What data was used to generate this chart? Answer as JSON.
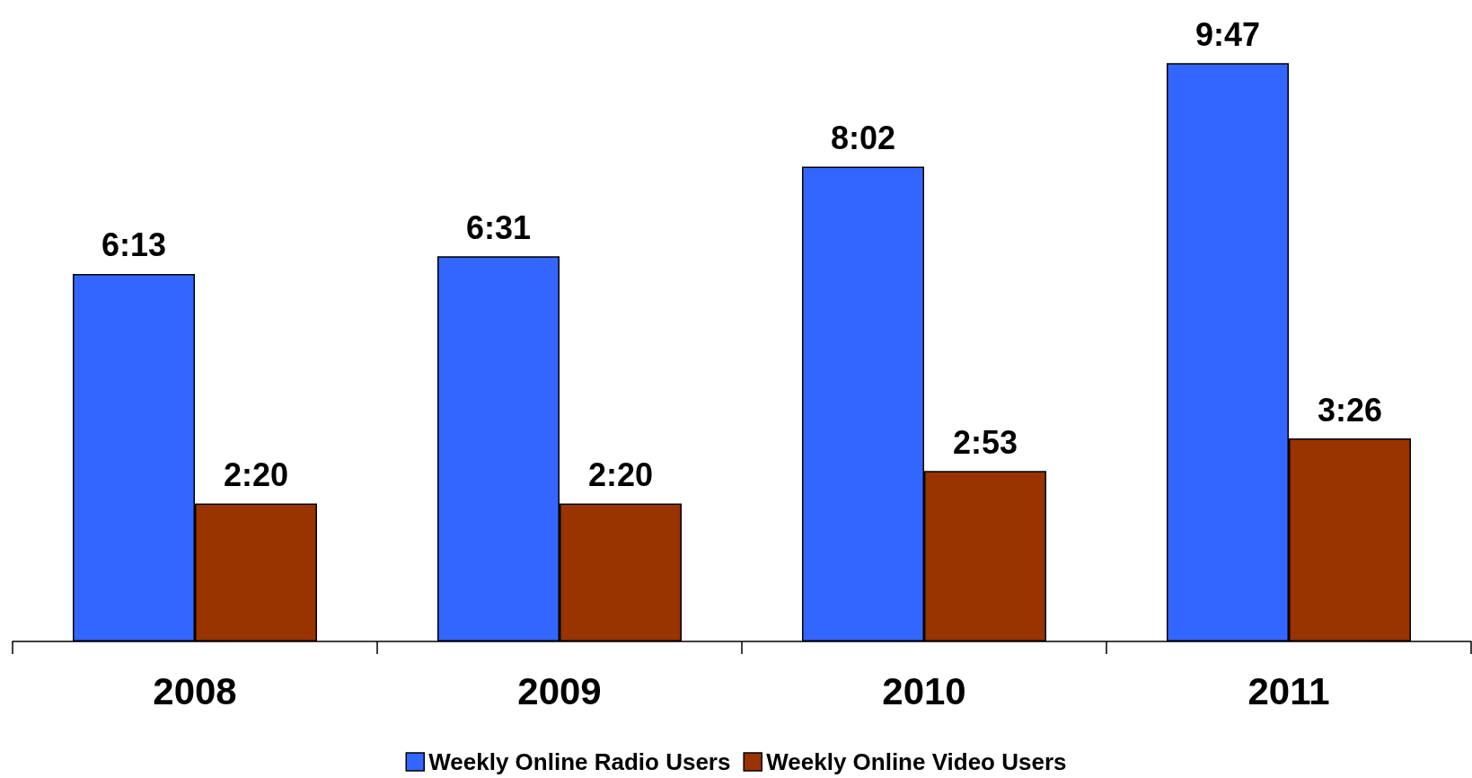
{
  "chart_data": {
    "type": "bar",
    "categories": [
      "2008",
      "2009",
      "2010",
      "2011"
    ],
    "series": [
      {
        "name": "Weekly Online Radio Users",
        "color": "#3366ff",
        "values": [
          6.2167,
          6.5167,
          8.0333,
          9.7833
        ],
        "value_labels": [
          "6:13",
          "6:31",
          "8:02",
          "9:47"
        ]
      },
      {
        "name": "Weekly Online Video Users",
        "color": "#993300",
        "values": [
          2.3333,
          2.3333,
          2.8833,
          3.4333
        ],
        "value_labels": [
          "2:20",
          "2:20",
          "2:53",
          "3:26"
        ]
      }
    ],
    "grid": false,
    "legend": "bottom"
  }
}
